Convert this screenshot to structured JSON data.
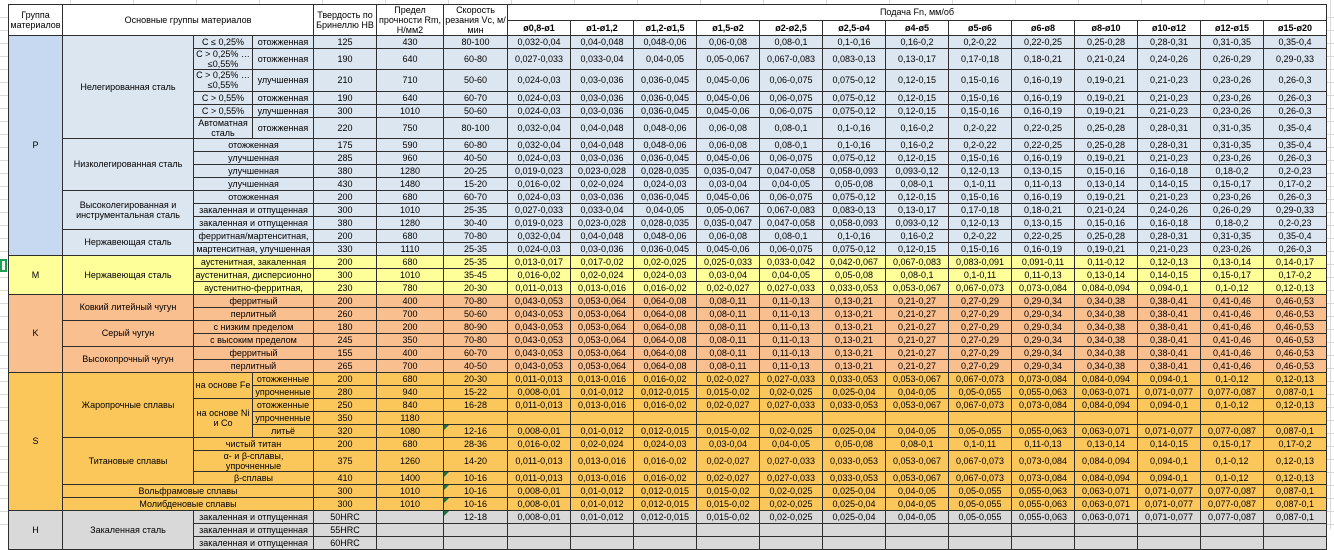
{
  "header": {
    "col_group": "Группа материалов",
    "col_main": "Основные группы материалов",
    "col_hb": "Твердость по Бринеллю НВ",
    "col_rm": "Предел прочности Rm, Н/мм2",
    "col_vc": "Скорость резания Vc, м/мин",
    "col_feed": "Подача Fn, мм/об",
    "diameters": [
      "ø0,8-ø1",
      "ø1-ø1,2",
      "ø1,2-ø1,5",
      "ø1,5-ø2",
      "ø2-ø2,5",
      "ø2,5-ø4",
      "ø4-ø5",
      "ø5-ø6",
      "ø6-ø8",
      "ø8-ø10",
      "ø10-ø12",
      "ø12-ø15",
      "ø15-ø20"
    ]
  },
  "colors": {
    "P": {
      "letter": "#c6d9f1",
      "row": "#dce6f1"
    },
    "M": {
      "letter": "#ffff99",
      "row": "#ffff99"
    },
    "K": {
      "letter": "#fabf8f",
      "row": "#fabf8f"
    },
    "S": {
      "letter": "#fbc75b",
      "row": "#fbc75b"
    },
    "H": {
      "letter": "#d9d9d9",
      "row": "#d9d9d9"
    },
    "flag": "#1e7145",
    "table_border": "#2e2e2e",
    "sheet_grid": "#d9d9d9",
    "active_cell": "#1f9d55"
  },
  "feed_series": {
    "A": [
      "0,032-0,04",
      "0,04-0,048",
      "0,048-0,06",
      "0,06-0,08",
      "0,08-0,1",
      "0,1-0,16",
      "0,16-0,2",
      "0,2-0,22",
      "0,22-0,25",
      "0,25-0,28",
      "0,28-0,31",
      "0,31-0,35",
      "0,35-0,4"
    ],
    "B": [
      "0,027-0,033",
      "0,033-0,04",
      "0,04-0,05",
      "0,05-0,067",
      "0,067-0,083",
      "0,083-0,13",
      "0,13-0,17",
      "0,17-0,18",
      "0,18-0,21",
      "0,21-0,24",
      "0,24-0,26",
      "0,26-0,29",
      "0,29-0,33"
    ],
    "C": [
      "0,024-0,03",
      "0,03-0,036",
      "0,036-0,045",
      "0,045-0,06",
      "0,06-0,075",
      "0,075-0,12",
      "0,12-0,15",
      "0,15-0,16",
      "0,16-0,19",
      "0,19-0,21",
      "0,21-0,23",
      "0,23-0,26",
      "0,26-0,3"
    ],
    "D": [
      "0,019-0,023",
      "0,023-0,028",
      "0,028-0,035",
      "0,035-0,047",
      "0,047-0,058",
      "0,058-0,093",
      "0,093-0,12",
      "0,12-0,13",
      "0,13-0,15",
      "0,15-0,16",
      "0,16-0,18",
      "0,18-0,2",
      "0,2-0,23"
    ],
    "E": [
      "0,016-0,02",
      "0,02-0,024",
      "0,024-0,03",
      "0,03-0,04",
      "0,04-0,05",
      "0,05-0,08",
      "0,08-0,1",
      "0,1-0,11",
      "0,11-0,13",
      "0,13-0,14",
      "0,14-0,15",
      "0,15-0,17",
      "0,17-0,2"
    ],
    "F": [
      "0,013-0,017",
      "0,017-0,02",
      "0,02-0,025",
      "0,025-0,033",
      "0,033-0,042",
      "0,042-0,067",
      "0,067-0,083",
      "0,083-0,091",
      "0,091-0,11",
      "0,11-0,12",
      "0,12-0,13",
      "0,13-0,14",
      "0,14-0,17"
    ],
    "G": [
      "0,011-0,013",
      "0,013-0,016",
      "0,016-0,02",
      "0,02-0,027",
      "0,027-0,033",
      "0,033-0,053",
      "0,053-0,067",
      "0,067-0,073",
      "0,073-0,084",
      "0,084-0,094",
      "0,094-0,1",
      "0,1-0,12",
      "0,12-0,13"
    ],
    "H": [
      "0,008-0,01",
      "0,01-0,012",
      "0,012-0,015",
      "0,015-0,02",
      "0,02-0,025",
      "0,025-0,04",
      "0,04-0,05",
      "0,05-0,055",
      "0,055-0,063",
      "0,063-0,071",
      "0,071-0,077",
      "0,077-0,087",
      "0,087-0,1"
    ],
    "K": [
      "0,043-0,053",
      "0,053-0,064",
      "0,064-0,08",
      "0,08-0,11",
      "0,11-0,13",
      "0,13-0,21",
      "0,21-0,27",
      "0,27-0,29",
      "0,29-0,34",
      "0,34-0,38",
      "0,38-0,41",
      "0,41-0,46",
      "0,46-0,53"
    ],
    "NONE": [
      "",
      "",
      "",
      "",
      "",
      "",
      "",
      "",
      "",
      "",
      "",
      "",
      ""
    ]
  },
  "groups": [
    {
      "letter": "P",
      "rows": [
        {
          "mat": [
            [
              "Нелегированная сталь",
              1,
              6
            ],
            [
              "C ≤ 0,25%",
              1,
              1
            ],
            [
              "отожженная",
              1,
              1
            ]
          ],
          "hb": "125",
          "rm": "430",
          "vc": "80-100",
          "feed": "A"
        },
        {
          "mat": [
            [
              "C > 0,25% … ≤0,55%",
              1,
              1
            ],
            [
              "отожженная",
              1,
              1
            ]
          ],
          "hb": "190",
          "rm": "640",
          "vc": "60-80",
          "feed": "B"
        },
        {
          "mat": [
            [
              "C > 0,25% … ≤0,55%",
              1,
              1
            ],
            [
              "улучшенная",
              1,
              1
            ]
          ],
          "hb": "210",
          "rm": "710",
          "vc": "50-60",
          "feed": "C"
        },
        {
          "mat": [
            [
              "C > 0,55%",
              1,
              1
            ],
            [
              "отожженная",
              1,
              1
            ]
          ],
          "hb": "190",
          "rm": "640",
          "vc": "60-70",
          "feed": "C"
        },
        {
          "mat": [
            [
              "C > 0,55%",
              1,
              1
            ],
            [
              "улучшенная",
              1,
              1
            ]
          ],
          "hb": "300",
          "rm": "1010",
          "vc": "50-60",
          "feed": "C"
        },
        {
          "mat": [
            [
              "Автоматная сталь",
              1,
              1
            ],
            [
              "отожженная",
              1,
              1
            ]
          ],
          "hb": "220",
          "rm": "750",
          "vc": "80-100",
          "feed": "A"
        },
        {
          "mat": [
            [
              "Низколегированная сталь",
              1,
              4
            ],
            [
              "отожженная",
              2,
              1
            ]
          ],
          "hb": "175",
          "rm": "590",
          "vc": "60-80",
          "feed": "A"
        },
        {
          "mat": [
            [
              "улучшенная",
              2,
              1
            ]
          ],
          "hb": "285",
          "rm": "960",
          "vc": "40-50",
          "feed": "C"
        },
        {
          "mat": [
            [
              "улучшенная",
              2,
              1
            ]
          ],
          "hb": "380",
          "rm": "1280",
          "vc": "20-25",
          "feed": "D"
        },
        {
          "mat": [
            [
              "улучшенная",
              2,
              1
            ]
          ],
          "hb": "430",
          "rm": "1480",
          "vc": "15-20",
          "feed": "E"
        },
        {
          "mat": [
            [
              "Высоколегированная и инструментальная сталь",
              1,
              3
            ],
            [
              "отожженная",
              2,
              1
            ]
          ],
          "hb": "200",
          "rm": "680",
          "vc": "60-70",
          "feed": "C"
        },
        {
          "mat": [
            [
              "закаленная и отпущенная",
              2,
              1
            ]
          ],
          "hb": "300",
          "rm": "1010",
          "vc": "25-35",
          "feed": "B"
        },
        {
          "mat": [
            [
              "закаленная и отпущенная",
              2,
              1
            ]
          ],
          "hb": "380",
          "rm": "1280",
          "vc": "30-40",
          "feed": "D"
        },
        {
          "mat": [
            [
              "Нержавеющая сталь",
              1,
              2
            ],
            [
              "ферритная/мартенситная,",
              2,
              1
            ]
          ],
          "hb": "200",
          "rm": "680",
          "vc": "70-80",
          "feed": "A"
        },
        {
          "mat": [
            [
              "мартенситная, улучшенная",
              2,
              1
            ]
          ],
          "hb": "330",
          "rm": "1110",
          "vc": "25-35",
          "feed": "C"
        }
      ]
    },
    {
      "letter": "M",
      "rows": [
        {
          "mat": [
            [
              "Нержавеющая сталь",
              1,
              3
            ],
            [
              "аустенитная, закаленная",
              2,
              1
            ]
          ],
          "hb": "200",
          "rm": "680",
          "vc": "25-35",
          "feed": "F"
        },
        {
          "mat": [
            [
              "аустенитная, дисперсионно",
              2,
              1
            ]
          ],
          "hb": "300",
          "rm": "1010",
          "vc": "35-45",
          "feed": "E"
        },
        {
          "mat": [
            [
              "аустенитно-ферритная,",
              2,
              1
            ]
          ],
          "hb": "230",
          "rm": "780",
          "vc": "20-30",
          "feed": "G"
        }
      ]
    },
    {
      "letter": "K",
      "rows": [
        {
          "mat": [
            [
              "Ковкий литейный чугун",
              1,
              2
            ],
            [
              "ферритный",
              2,
              1
            ]
          ],
          "hb": "200",
          "rm": "400",
          "vc": "70-80",
          "feed": "K"
        },
        {
          "mat": [
            [
              "перлитный",
              2,
              1
            ]
          ],
          "hb": "260",
          "rm": "700",
          "vc": "50-60",
          "feed": "K"
        },
        {
          "mat": [
            [
              "Серый чугун",
              1,
              2
            ],
            [
              "с низким пределом",
              2,
              1
            ]
          ],
          "hb": "180",
          "rm": "200",
          "vc": "80-90",
          "feed": "K"
        },
        {
          "mat": [
            [
              "с высоким пределом",
              2,
              1
            ]
          ],
          "hb": "245",
          "rm": "350",
          "vc": "70-80",
          "feed": "K"
        },
        {
          "mat": [
            [
              "Высокопрочный чугун",
              1,
              2
            ],
            [
              "ферритный",
              2,
              1
            ]
          ],
          "hb": "155",
          "rm": "400",
          "vc": "60-70",
          "feed": "K"
        },
        {
          "mat": [
            [
              "перлитный",
              2,
              1
            ]
          ],
          "hb": "265",
          "rm": "700",
          "vc": "40-50",
          "feed": "K"
        }
      ]
    },
    {
      "letter": "S",
      "rows": [
        {
          "mat": [
            [
              "Жаропрочные сплавы",
              1,
              5
            ],
            [
              "на основе Fe",
              1,
              2
            ],
            [
              "отожженные",
              1,
              1
            ]
          ],
          "hb": "200",
          "rm": "680",
          "vc": "20-30",
          "feed": "G"
        },
        {
          "mat": [
            [
              "упрочненные",
              1,
              1
            ]
          ],
          "hb": "280",
          "rm": "940",
          "vc": "15-22",
          "feed": "H"
        },
        {
          "mat": [
            [
              "на основе Ni и Co",
              1,
              3
            ],
            [
              "отожженные",
              1,
              1
            ]
          ],
          "hb": "250",
          "rm": "840",
          "vc": "16-28",
          "feed": "G"
        },
        {
          "mat": [
            [
              "упрочненные",
              1,
              1
            ]
          ],
          "hb": "350",
          "rm": "1180",
          "vc": "",
          "feed": "NONE"
        },
        {
          "mat": [
            [
              "литьё",
              1,
              1
            ]
          ],
          "hb": "320",
          "rm": "1080",
          "vc": "12-16",
          "vc_flag": true,
          "feed": "H"
        },
        {
          "mat": [
            [
              "Титановые сплавы",
              1,
              3
            ],
            [
              "чистый титан",
              2,
              1
            ]
          ],
          "hb": "200",
          "rm": "680",
          "vc": "28-36",
          "feed": "E"
        },
        {
          "mat": [
            [
              "α- и β-сплавы, упрочненные",
              2,
              1
            ]
          ],
          "hb": "375",
          "rm": "1260",
          "vc": "14-20",
          "feed": "G"
        },
        {
          "mat": [
            [
              "β-сплавы",
              2,
              1
            ]
          ],
          "hb": "410",
          "rm": "1400",
          "vc": "10-16",
          "vc_flag": true,
          "feed": "G"
        },
        {
          "mat": [
            [
              "Вольфрамовые сплавы",
              3,
              1
            ]
          ],
          "hb": "300",
          "rm": "1010",
          "vc": "10-16",
          "vc_flag": true,
          "feed": "H"
        },
        {
          "mat": [
            [
              "Молибденовые сплавы",
              3,
              1
            ]
          ],
          "hb": "300",
          "rm": "1010",
          "vc": "10-16",
          "vc_flag": true,
          "feed": "H"
        }
      ]
    },
    {
      "letter": "H",
      "rows": [
        {
          "mat": [
            [
              "Закаленная сталь",
              1,
              3
            ],
            [
              "закаленная и отпущенная",
              2,
              1
            ]
          ],
          "hb": "50HRC",
          "rm": "",
          "vc": "12-18",
          "vc_flag": true,
          "feed": "H"
        },
        {
          "mat": [
            [
              "закаленная и отпущенная",
              2,
              1
            ]
          ],
          "hb": "55HRC",
          "rm": "",
          "vc": "",
          "feed": "NONE"
        },
        {
          "mat": [
            [
              "закаленная и отпущенная",
              2,
              1
            ]
          ],
          "hb": "60HRC",
          "rm": "",
          "vc": "",
          "feed": "NONE"
        }
      ]
    }
  ]
}
